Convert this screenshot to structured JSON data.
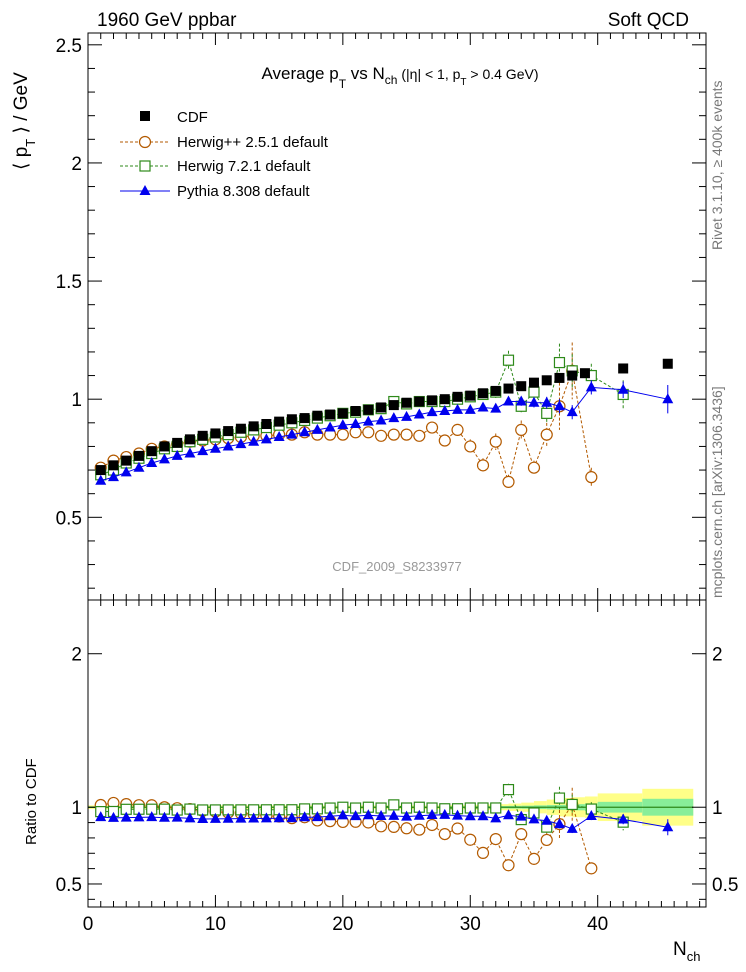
{
  "header": {
    "left": "1960 GeV ppbar",
    "right": "Soft QCD"
  },
  "side_labels": {
    "rivet": "Rivet 3.1.10, ≥ 400k events",
    "mcplots": "mcplots.cern.ch [arXiv:1306.3436]"
  },
  "chart_data": {
    "type": "scatter",
    "title": "Average p_T vs N_ch (|η| < 1, p_T > 0.4 GeV)",
    "title_parts": {
      "a": "Average p",
      "b": "T",
      "c": " vs N",
      "d": "ch",
      "e": " (|η| < 1, p",
      "f": "T",
      "g": " > 0.4 GeV)"
    },
    "ylabel_parts": {
      "open": "⟨ p",
      "sub": "T",
      "close": " ⟩ / GeV"
    },
    "xlabel_parts": {
      "main": "N",
      "sub": "ch"
    },
    "ratio_ylabel": "Ratio to CDF",
    "analysis_id": "CDF_2009_S8233977",
    "xlim": [
      0,
      48.5
    ],
    "ylim": [
      0.15,
      2.55
    ],
    "ratio_ylim": [
      0.35,
      2.35
    ],
    "x_ticks": [
      0,
      10,
      20,
      30,
      40
    ],
    "y_ticks": [
      0.5,
      1,
      1.5,
      2,
      2.5
    ],
    "ratio_ticks": [
      0.5,
      1,
      2
    ],
    "legend": [
      "CDF",
      "Herwig++ 2.5.1 default",
      "Herwig 7.2.1 default",
      "Pythia 8.308 default"
    ],
    "band_edges": [
      0,
      1,
      2,
      3,
      4,
      5,
      6,
      7,
      8,
      9,
      10,
      11,
      12,
      13,
      14,
      15,
      16,
      17,
      18,
      19,
      20,
      21,
      22,
      23,
      24,
      25,
      26,
      27,
      28,
      29,
      30,
      31,
      32,
      33,
      34,
      35,
      36,
      37,
      38,
      39,
      40,
      43.5,
      47.5
    ],
    "band_inner": [
      0.005,
      0.005,
      0.005,
      0.005,
      0.005,
      0.005,
      0.005,
      0.005,
      0.005,
      0.005,
      0.005,
      0.005,
      0.005,
      0.005,
      0.005,
      0.005,
      0.005,
      0.005,
      0.005,
      0.005,
      0.005,
      0.005,
      0.005,
      0.005,
      0.005,
      0.005,
      0.005,
      0.005,
      0.005,
      0.006,
      0.006,
      0.007,
      0.008,
      0.009,
      0.01,
      0.012,
      0.014,
      0.016,
      0.02,
      0.025,
      0.035,
      0.055
    ],
    "band_outer": [
      0.012,
      0.012,
      0.012,
      0.012,
      0.012,
      0.012,
      0.012,
      0.012,
      0.012,
      0.012,
      0.012,
      0.012,
      0.012,
      0.012,
      0.012,
      0.012,
      0.012,
      0.012,
      0.012,
      0.012,
      0.012,
      0.012,
      0.012,
      0.012,
      0.012,
      0.012,
      0.012,
      0.012,
      0.013,
      0.014,
      0.015,
      0.017,
      0.02,
      0.024,
      0.03,
      0.04,
      0.05,
      0.06,
      0.065,
      0.07,
      0.09,
      0.12
    ],
    "series": [
      {
        "name": "CDF",
        "color": "#000000",
        "x": [
          1,
          2,
          3,
          4,
          5,
          6,
          7,
          8,
          9,
          10,
          11,
          12,
          13,
          14,
          15,
          16,
          17,
          18,
          19,
          20,
          21,
          22,
          23,
          24,
          25,
          26,
          27,
          28,
          29,
          30,
          31,
          32,
          33,
          34,
          35,
          36,
          37,
          38,
          39,
          42,
          45.5
        ],
        "y": [
          0.7,
          0.72,
          0.74,
          0.76,
          0.78,
          0.8,
          0.815,
          0.83,
          0.845,
          0.855,
          0.865,
          0.875,
          0.885,
          0.895,
          0.905,
          0.915,
          0.92,
          0.93,
          0.935,
          0.94,
          0.95,
          0.955,
          0.965,
          0.975,
          0.985,
          0.99,
          0.995,
          1.0,
          1.01,
          1.015,
          1.025,
          1.035,
          1.045,
          1.055,
          1.07,
          1.08,
          1.09,
          1.1,
          1.11,
          1.13,
          1.15
        ]
      },
      {
        "name": "Herwig++ 2.5.1 default",
        "color": "#b35a00",
        "x": [
          1,
          2,
          3,
          4,
          5,
          6,
          7,
          8,
          9,
          10,
          11,
          12,
          13,
          14,
          15,
          16,
          17,
          18,
          19,
          20,
          21,
          22,
          23,
          24,
          25,
          26,
          27,
          28,
          29,
          30,
          31,
          32,
          33,
          34,
          35,
          36,
          37,
          38,
          39.5
        ],
        "y": [
          0.71,
          0.74,
          0.755,
          0.77,
          0.79,
          0.8,
          0.81,
          0.82,
          0.825,
          0.83,
          0.835,
          0.84,
          0.845,
          0.845,
          0.85,
          0.85,
          0.86,
          0.85,
          0.85,
          0.85,
          0.86,
          0.86,
          0.845,
          0.85,
          0.85,
          0.845,
          0.88,
          0.825,
          0.87,
          0.8,
          0.72,
          0.82,
          0.65,
          0.87,
          0.71,
          0.85,
          0.97,
          1.12,
          0.67
        ],
        "yerr": [
          0.005,
          0.005,
          0.005,
          0.005,
          0.005,
          0.005,
          0.005,
          0.005,
          0.005,
          0.005,
          0.005,
          0.005,
          0.005,
          0.005,
          0.005,
          0.005,
          0.005,
          0.005,
          0.005,
          0.006,
          0.006,
          0.007,
          0.008,
          0.009,
          0.01,
          0.012,
          0.015,
          0.02,
          0.025,
          0.03,
          0.03,
          0.035,
          0.03,
          0.04,
          0.03,
          0.05,
          0.1,
          0.12,
          0.04
        ]
      },
      {
        "name": "Herwig 7.2.1 default",
        "color": "#2e8a1a",
        "x": [
          1,
          2,
          3,
          4,
          5,
          6,
          7,
          8,
          9,
          10,
          11,
          12,
          13,
          14,
          15,
          16,
          17,
          18,
          19,
          20,
          21,
          22,
          23,
          24,
          25,
          26,
          27,
          28,
          29,
          30,
          31,
          32,
          33,
          34,
          35,
          36,
          37,
          38,
          39.5,
          42
        ],
        "y": [
          0.68,
          0.7,
          0.73,
          0.75,
          0.77,
          0.79,
          0.8,
          0.82,
          0.83,
          0.84,
          0.85,
          0.86,
          0.87,
          0.88,
          0.89,
          0.9,
          0.91,
          0.92,
          0.93,
          0.94,
          0.945,
          0.955,
          0.96,
          0.99,
          0.98,
          0.99,
          0.99,
          0.99,
          1.0,
          1.01,
          1.02,
          1.03,
          1.165,
          0.97,
          1.03,
          0.94,
          1.155,
          1.12,
          1.1,
          1.02
        ],
        "yerr": [
          0.005,
          0.005,
          0.005,
          0.005,
          0.005,
          0.005,
          0.005,
          0.005,
          0.005,
          0.005,
          0.005,
          0.005,
          0.005,
          0.005,
          0.005,
          0.005,
          0.005,
          0.005,
          0.005,
          0.006,
          0.006,
          0.007,
          0.008,
          0.009,
          0.01,
          0.012,
          0.012,
          0.014,
          0.015,
          0.016,
          0.02,
          0.025,
          0.04,
          0.03,
          0.035,
          0.04,
          0.08,
          0.07,
          0.05,
          0.06
        ]
      },
      {
        "name": "Pythia 8.308 default",
        "color": "#0000ee",
        "x": [
          1,
          2,
          3,
          4,
          5,
          6,
          7,
          8,
          9,
          10,
          11,
          12,
          13,
          14,
          15,
          16,
          17,
          18,
          19,
          20,
          21,
          22,
          23,
          24,
          25,
          26,
          27,
          28,
          29,
          30,
          31,
          32,
          33,
          34,
          35,
          36,
          37,
          38,
          39.5,
          42,
          45.5
        ],
        "y": [
          0.655,
          0.67,
          0.69,
          0.71,
          0.73,
          0.745,
          0.76,
          0.77,
          0.78,
          0.79,
          0.8,
          0.81,
          0.82,
          0.83,
          0.84,
          0.85,
          0.86,
          0.87,
          0.88,
          0.89,
          0.895,
          0.905,
          0.91,
          0.92,
          0.925,
          0.935,
          0.945,
          0.95,
          0.955,
          0.955,
          0.965,
          0.96,
          0.99,
          0.99,
          0.985,
          0.985,
          0.97,
          0.945,
          1.05,
          1.04,
          1.0
        ],
        "yerr": [
          0.003,
          0.003,
          0.003,
          0.003,
          0.003,
          0.003,
          0.003,
          0.003,
          0.003,
          0.003,
          0.003,
          0.003,
          0.003,
          0.003,
          0.003,
          0.003,
          0.003,
          0.003,
          0.003,
          0.004,
          0.004,
          0.004,
          0.005,
          0.005,
          0.006,
          0.006,
          0.007,
          0.008,
          0.009,
          0.01,
          0.012,
          0.014,
          0.016,
          0.018,
          0.02,
          0.025,
          0.03,
          0.03,
          0.03,
          0.035,
          0.06
        ]
      }
    ]
  }
}
